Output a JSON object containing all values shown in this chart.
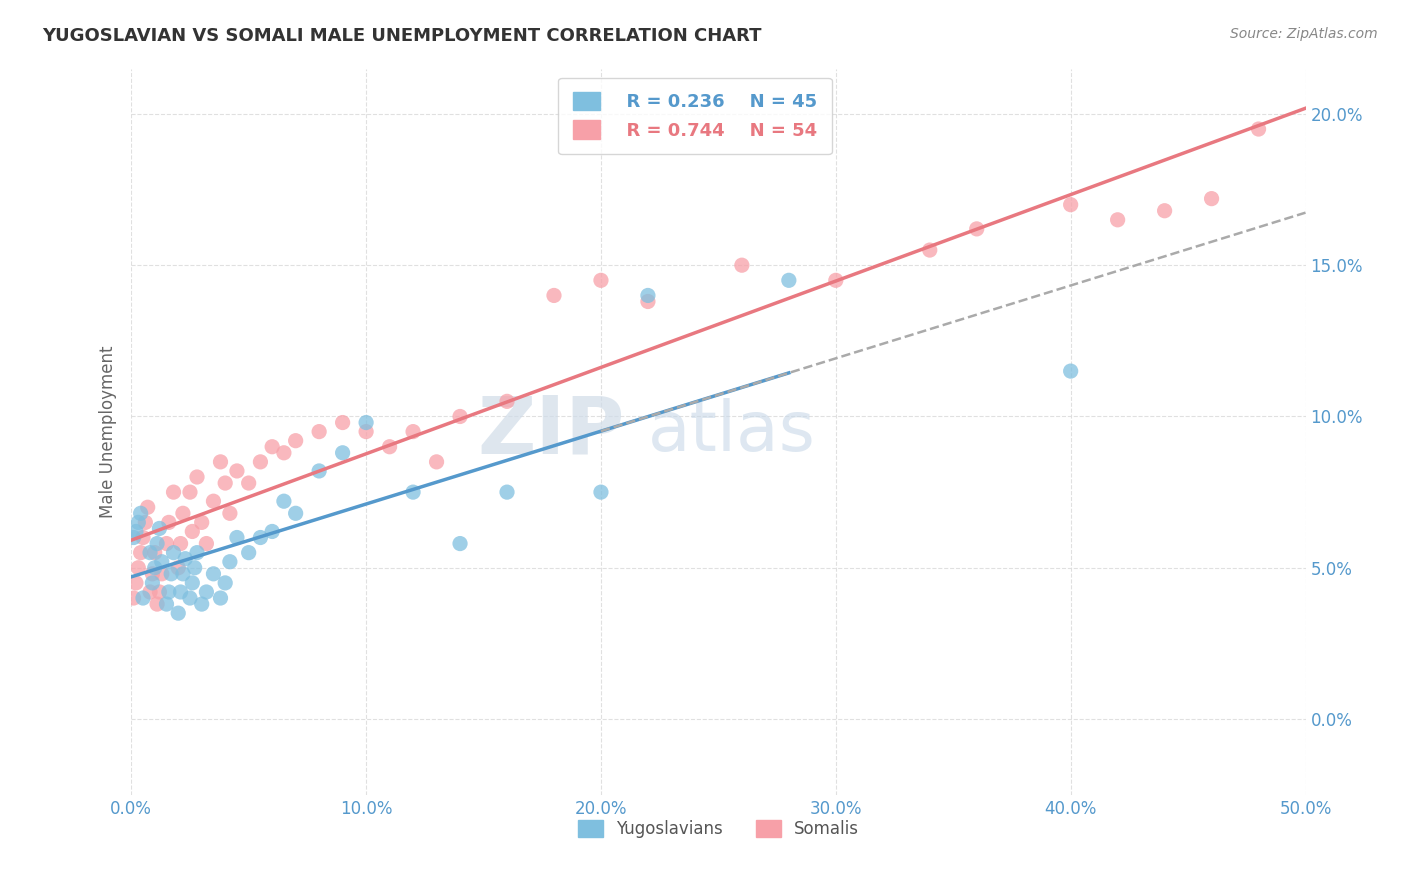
{
  "title": "YUGOSLAVIAN VS SOMALI MALE UNEMPLOYMENT CORRELATION CHART",
  "source_text": "Source: ZipAtlas.com",
  "ylabel": "Male Unemployment",
  "xlim": [
    0.0,
    0.5
  ],
  "ylim": [
    -0.025,
    0.215
  ],
  "yticks": [
    0.0,
    0.05,
    0.1,
    0.15,
    0.2
  ],
  "ytick_labels": [
    "0.0%",
    "5.0%",
    "10.0%",
    "15.0%",
    "20.0%"
  ],
  "xticks": [
    0.0,
    0.1,
    0.2,
    0.3,
    0.4,
    0.5
  ],
  "xtick_labels": [
    "0.0%",
    "10.0%",
    "20.0%",
    "30.0%",
    "40.0%",
    "50.0%"
  ],
  "legend_R_yugo": "R = 0.236",
  "legend_N_yugo": "N = 45",
  "legend_R_somali": "R = 0.744",
  "legend_N_somali": "N = 54",
  "yugo_color": "#7fbfdf",
  "somali_color": "#f7a0a8",
  "yugo_line_color": "#5599cc",
  "somali_line_color": "#e87880",
  "background_color": "#ffffff",
  "grid_color": "#dddddd",
  "yugo_x": [
    0.001,
    0.002,
    0.003,
    0.004,
    0.005,
    0.008,
    0.009,
    0.01,
    0.011,
    0.012,
    0.013,
    0.015,
    0.016,
    0.017,
    0.018,
    0.02,
    0.021,
    0.022,
    0.023,
    0.025,
    0.026,
    0.027,
    0.028,
    0.03,
    0.032,
    0.035,
    0.038,
    0.04,
    0.042,
    0.045,
    0.05,
    0.055,
    0.06,
    0.065,
    0.07,
    0.08,
    0.09,
    0.1,
    0.12,
    0.14,
    0.16,
    0.2,
    0.22,
    0.28,
    0.4
  ],
  "yugo_y": [
    0.06,
    0.062,
    0.065,
    0.068,
    0.04,
    0.055,
    0.045,
    0.05,
    0.058,
    0.063,
    0.052,
    0.038,
    0.042,
    0.048,
    0.055,
    0.035,
    0.042,
    0.048,
    0.053,
    0.04,
    0.045,
    0.05,
    0.055,
    0.038,
    0.042,
    0.048,
    0.04,
    0.045,
    0.052,
    0.06,
    0.055,
    0.06,
    0.062,
    0.072,
    0.068,
    0.082,
    0.088,
    0.098,
    0.075,
    0.058,
    0.075,
    0.075,
    0.14,
    0.145,
    0.115
  ],
  "somali_x": [
    0.001,
    0.002,
    0.003,
    0.004,
    0.005,
    0.006,
    0.007,
    0.008,
    0.009,
    0.01,
    0.011,
    0.012,
    0.013,
    0.015,
    0.016,
    0.018,
    0.02,
    0.021,
    0.022,
    0.025,
    0.026,
    0.028,
    0.03,
    0.032,
    0.035,
    0.038,
    0.04,
    0.042,
    0.045,
    0.05,
    0.055,
    0.06,
    0.065,
    0.07,
    0.08,
    0.09,
    0.1,
    0.11,
    0.12,
    0.13,
    0.14,
    0.16,
    0.18,
    0.2,
    0.22,
    0.26,
    0.3,
    0.34,
    0.36,
    0.4,
    0.42,
    0.44,
    0.46,
    0.48
  ],
  "somali_y": [
    0.04,
    0.045,
    0.05,
    0.055,
    0.06,
    0.065,
    0.07,
    0.042,
    0.048,
    0.055,
    0.038,
    0.042,
    0.048,
    0.058,
    0.065,
    0.075,
    0.05,
    0.058,
    0.068,
    0.075,
    0.062,
    0.08,
    0.065,
    0.058,
    0.072,
    0.085,
    0.078,
    0.068,
    0.082,
    0.078,
    0.085,
    0.09,
    0.088,
    0.092,
    0.095,
    0.098,
    0.095,
    0.09,
    0.095,
    0.085,
    0.1,
    0.105,
    0.14,
    0.145,
    0.138,
    0.15,
    0.145,
    0.155,
    0.162,
    0.17,
    0.165,
    0.168,
    0.172,
    0.195
  ]
}
